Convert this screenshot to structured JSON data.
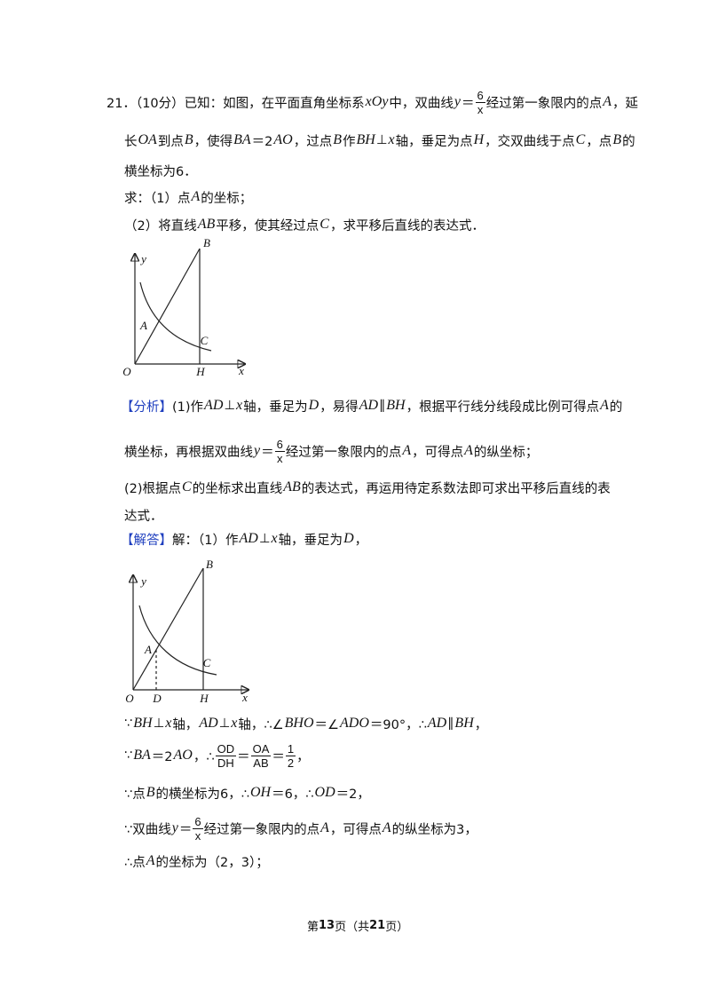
{
  "question": [
    [
      "21．（10分）已知：如图，在平面直角坐标系",
      {
        "i": "xOy"
      },
      "中，双曲线",
      {
        "i": "y"
      },
      "＝",
      {
        "num": "6",
        "den": "x"
      },
      "经过第一象限内的点",
      {
        "i": "A"
      },
      "，延"
    ],
    [
      "长",
      {
        "i": "OA"
      },
      "到点",
      {
        "i": "B"
      },
      "，使得",
      {
        "i": "BA"
      },
      "＝2",
      {
        "i": "AO"
      },
      "，过点",
      {
        "i": "B"
      },
      "作",
      {
        "i": "BH"
      },
      "⊥",
      {
        "i": "x"
      },
      "轴，垂足为点",
      {
        "i": "H"
      },
      "，交双曲线于点",
      {
        "i": "C"
      },
      "，点",
      {
        "i": "B"
      },
      "的"
    ],
    [
      "横坐标为6．"
    ],
    [
      "求：（1）点",
      {
        "i": "A"
      },
      "的坐标；"
    ],
    [
      "（2）将直线",
      {
        "i": "AB"
      },
      "平移，使其经过点",
      {
        "i": "C"
      },
      "，求平移后直线的表达式．"
    ]
  ],
  "figure1": {
    "labels": [
      "y",
      "B",
      "A",
      "C",
      "O",
      "H",
      "x"
    ]
  },
  "analysis": [
    [
      {
        "tag": "【分析】"
      },
      "(1)作",
      {
        "i": "AD"
      },
      "⊥",
      {
        "i": "x"
      },
      "轴，垂足为",
      {
        "i": "D"
      },
      "，易得",
      {
        "i": "AD"
      },
      "∥",
      {
        "i": "BH"
      },
      "，根据平行线分线段成比例可得点",
      {
        "i": "A"
      },
      "的"
    ],
    [
      "横坐标，再根据双曲线",
      {
        "i": "y"
      },
      "＝",
      {
        "num": "6",
        "den": "x"
      },
      "经过第一象限内的点",
      {
        "i": "A"
      },
      "，可得点",
      {
        "i": "A"
      },
      "的纵坐标；"
    ],
    [
      "(2)根据点",
      {
        "i": "C"
      },
      "的坐标求出直线",
      {
        "i": "AB"
      },
      "的表达式，再运用待定系数法即可求出平移后直线的表"
    ],
    [
      "达式．"
    ]
  ],
  "solution_intro": [
    [
      {
        "tag": "【解答】"
      },
      "解：（1）作",
      {
        "i": "AD"
      },
      "⊥",
      {
        "i": "x"
      },
      "轴，垂足为",
      {
        "i": "D"
      },
      "，"
    ]
  ],
  "figure2": {
    "labels": [
      "y",
      "B",
      "A",
      "C",
      "O",
      "D",
      "H",
      "x"
    ]
  },
  "solution": [
    [
      "∵",
      {
        "i": "BH"
      },
      "⊥",
      {
        "i": "x"
      },
      "轴，",
      {
        "i": "AD"
      },
      "⊥",
      {
        "i": "x"
      },
      "轴，∴∠",
      {
        "i": "BHO"
      },
      "＝∠",
      {
        "i": "ADO"
      },
      "＝90°，∴",
      {
        "i": "AD"
      },
      "∥",
      {
        "i": "BH"
      },
      "，"
    ],
    [
      "∵",
      {
        "i": "BA"
      },
      "＝2",
      {
        "i": "AO"
      },
      "，∴",
      {
        "num": "OD",
        "den": "DH"
      },
      "＝",
      {
        "num": "OA",
        "den": "AB"
      },
      "＝",
      {
        "num": "1",
        "den": "2"
      },
      "，"
    ],
    [
      "∵点",
      {
        "i": "B"
      },
      "的横坐标为6，∴",
      {
        "i": "OH"
      },
      "＝6，∴",
      {
        "i": "OD"
      },
      "＝2，"
    ],
    [
      "∵双曲线",
      {
        "i": "y"
      },
      "＝",
      {
        "num": "6",
        "den": "x"
      },
      "经过第一象限内的点",
      {
        "i": "A"
      },
      "，可得点",
      {
        "i": "A"
      },
      "的纵坐标为3，"
    ],
    [
      "∴点",
      {
        "i": "A"
      },
      "的坐标为（2，3）；"
    ]
  ],
  "footer": [
    "第",
    {
      "bold": "13"
    },
    "页（共",
    {
      "bold": "21"
    },
    "页）"
  ]
}
